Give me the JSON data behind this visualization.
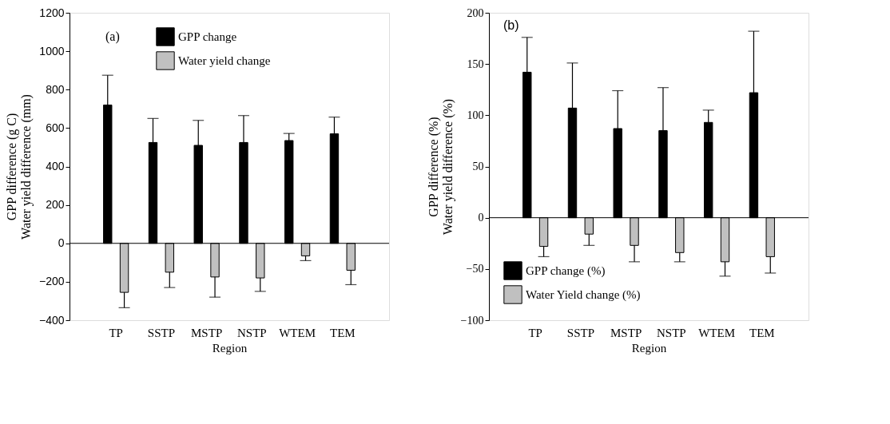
{
  "chart_data": [
    {
      "type": "bar",
      "categories": [
        "TP",
        "SSTP",
        "MSTP",
        "NSTP",
        "WTEM",
        "TEM"
      ],
      "xlabel": "Region",
      "ylabel": "GPP difference (g C)\nWater yield difference (mm)",
      "ylim": [
        -400,
        1200
      ],
      "yticks": [
        -400,
        -200,
        0,
        200,
        400,
        600,
        800,
        1000,
        1200
      ],
      "legend": "top",
      "grid": false,
      "annotations": [
        "(a)"
      ],
      "ref_lines": [
        {
          "axis": "y",
          "value": 0
        }
      ],
      "series": [
        {
          "name": "GPP change",
          "color": "#000000",
          "values": [
            720,
            525,
            510,
            525,
            535,
            570
          ],
          "errors": [
            [
              720,
              875
            ],
            [
              525,
              650
            ],
            [
              510,
              640
            ],
            [
              525,
              665
            ],
            [
              535,
              572
            ],
            [
              570,
              657
            ]
          ]
        },
        {
          "name": "Water yield change",
          "color": "#c0c0c0",
          "values": [
            -255,
            -150,
            -175,
            -180,
            -65,
            -140
          ],
          "errors": [
            [
              -335,
              -255
            ],
            [
              -230,
              -150
            ],
            [
              -280,
              -175
            ],
            [
              -250,
              -180
            ],
            [
              -90,
              -65
            ],
            [
              -215,
              -140
            ]
          ]
        }
      ]
    },
    {
      "type": "bar",
      "categories": [
        "TP",
        "SSTP",
        "MSTP",
        "NSTP",
        "WTEM",
        "TEM"
      ],
      "xlabel": "Region",
      "ylabel": "GPP difference (%)\nWater yield difference (%)",
      "ylim": [
        -100,
        200
      ],
      "yticks": [
        -100,
        -50,
        0,
        50,
        100,
        150,
        200
      ],
      "legend": "bottom left",
      "grid": false,
      "annotations": [
        "(b)"
      ],
      "ref_lines": [
        {
          "axis": "y",
          "value": 0
        }
      ],
      "series": [
        {
          "name": "GPP change (%)",
          "color": "#000000",
          "values": [
            142,
            107,
            87,
            85,
            93,
            122
          ],
          "errors": [
            [
              142,
              176
            ],
            [
              107,
              151
            ],
            [
              87,
              124
            ],
            [
              85,
              127
            ],
            [
              93,
              105
            ],
            [
              122,
              182
            ]
          ]
        },
        {
          "name": "Water Yield change (%)",
          "color": "#c0c0c0",
          "values": [
            -28,
            -16,
            -27,
            -34,
            -43,
            -38
          ],
          "errors": [
            [
              -38,
              -28
            ],
            [
              -27,
              -16
            ],
            [
              -43,
              -27
            ],
            [
              -43,
              -34
            ],
            [
              -57,
              -43
            ],
            [
              -54,
              -38
            ]
          ]
        }
      ]
    }
  ]
}
